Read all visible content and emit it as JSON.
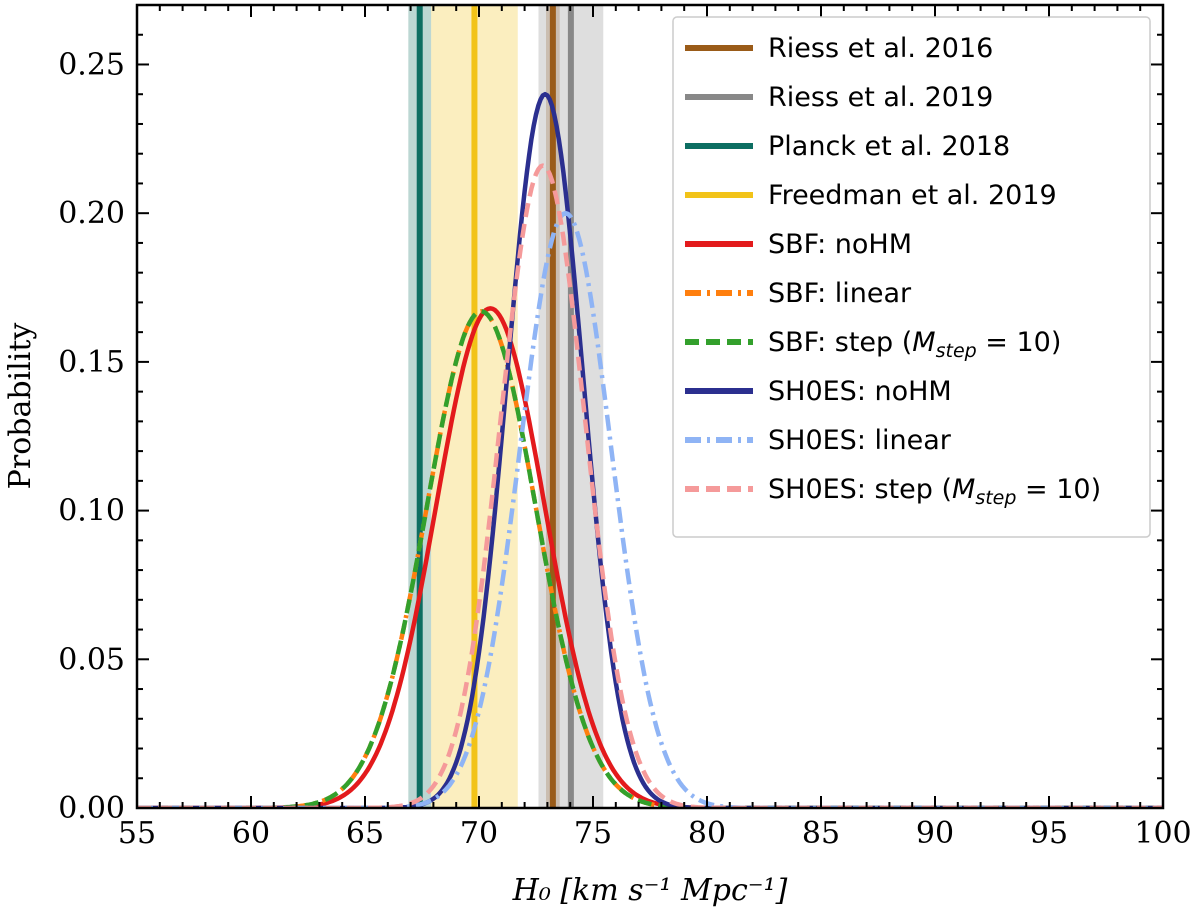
{
  "chart_data": {
    "type": "line",
    "title": "",
    "xlabel": "H₀  [km s⁻¹ Mpc⁻¹]",
    "ylabel": "Probability",
    "xlim": [
      55,
      100
    ],
    "ylim": [
      0,
      0.27
    ],
    "xticks": [
      55,
      60,
      65,
      70,
      75,
      80,
      85,
      90,
      95,
      100
    ],
    "yticks": [
      "0.00",
      "0.05",
      "0.10",
      "0.15",
      "0.20",
      "0.25"
    ],
    "grid": false,
    "legend_position": "top-right",
    "reference_measurements": [
      {
        "name": "Riess et al. 2016",
        "value": 73.24,
        "error": 0.3,
        "color": "#9a5b18"
      },
      {
        "name": "Riess et al. 2019",
        "value": 74.03,
        "error": 1.42,
        "color": "#888888"
      },
      {
        "name": "Planck et al. 2018",
        "value": 67.4,
        "error": 0.5,
        "color": "#0d6e62"
      },
      {
        "name": "Freedman et al. 2019",
        "value": 69.8,
        "error": 1.9,
        "color": "#f2c318"
      }
    ],
    "series": [
      {
        "name": "SBF: noHM",
        "color": "#e31a1c",
        "style": "solid",
        "peak_x": 70.5,
        "peak_y": 0.168
      },
      {
        "name": "SBF: linear",
        "color": "#ff7f0e",
        "style": "dashdot",
        "peak_x": 70.1,
        "peak_y": 0.167
      },
      {
        "name": "SBF: step (M_step = 10)",
        "color": "#33a02c",
        "style": "dashed",
        "peak_x": 70.1,
        "peak_y": 0.167
      },
      {
        "name": "SH0ES: noHM",
        "color": "#2b2f8f",
        "style": "solid",
        "peak_x": 72.9,
        "peak_y": 0.24
      },
      {
        "name": "SH0ES: linear",
        "color": "#8fb4f5",
        "style": "dashdot",
        "peak_x": 73.8,
        "peak_y": 0.2
      },
      {
        "name": "SH0ES: step (M_step = 10)",
        "color": "#f59a9a",
        "style": "dashed",
        "peak_x": 72.8,
        "peak_y": 0.216
      }
    ]
  }
}
